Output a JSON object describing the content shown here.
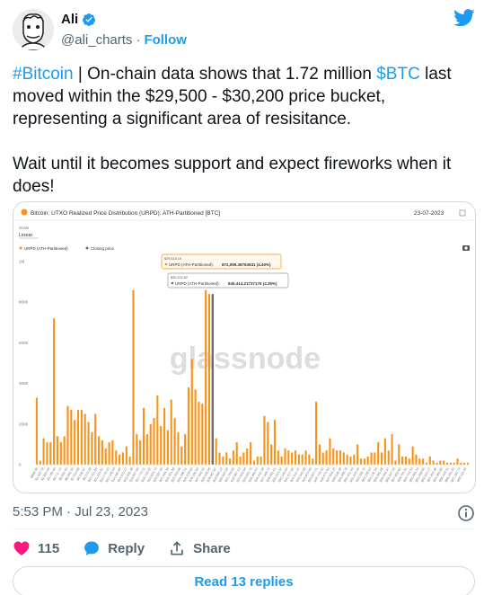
{
  "author": {
    "name": "Ali",
    "handle": "@ali_charts",
    "separator": "·",
    "follow_label": "Follow"
  },
  "tweet": {
    "hashtag": "#Bitcoin",
    "text_part1": " | On-chain data shows that 1.72 million ",
    "cashtag": "$BTC",
    "text_part2": "  last moved within the $29,500 - $30,200 price bucket, representing a significant area of resisitance.",
    "paragraph2": "Wait until it becomes support and expect fireworks when it does!"
  },
  "timestamp": "5:53 PM · Jul 23, 2023",
  "actions": {
    "likes": "115",
    "reply_label": "Reply",
    "share_label": "Share"
  },
  "read_replies_label": "Read 13 replies",
  "colors": {
    "accent": "#1d9bf0",
    "bar": "#f7931a",
    "like": "#f91880"
  },
  "icons": [
    "verified-badge-icon",
    "twitter-bird-icon",
    "info-icon",
    "heart-icon",
    "reply-icon",
    "share-icon",
    "camera-icon",
    "expand-icon"
  ],
  "chart_data": {
    "type": "bar",
    "title": "Bitcoin: UTXO Realized Price Distribution (URPD): ATH-Partitioned [BTC]",
    "date": "23-07-2023",
    "scale_label": "Scale",
    "scale_value": "Linear",
    "legend": [
      {
        "name": "URPD (ATH-Partitioned)",
        "color": "#f7931a"
      },
      {
        "name": "Closing price",
        "color": "#6e6e6e"
      }
    ],
    "watermark": "glassnode",
    "y_ticks": [
      "1M",
      "800K",
      "600K",
      "400K",
      "200K",
      "0"
    ],
    "ylim": [
      0,
      1000000
    ],
    "tooltip1": {
      "price": "$29,518.19",
      "series": "URPD (ATH-Partitioned):",
      "value": "872,059.38764941 (4.40%)"
    },
    "tooltip2": {
      "price": "$30,202.62",
      "series": "URPD (ATH-Partitioned):",
      "value": "845,414.21737176 (4.35%)"
    },
    "values": [
      330000,
      20000,
      130000,
      110000,
      110000,
      720000,
      140000,
      110000,
      140000,
      290000,
      270000,
      220000,
      270000,
      270000,
      250000,
      210000,
      160000,
      250000,
      140000,
      120000,
      80000,
      110000,
      120000,
      70000,
      50000,
      60000,
      90000,
      40000,
      860000,
      150000,
      120000,
      280000,
      150000,
      200000,
      230000,
      340000,
      190000,
      280000,
      170000,
      320000,
      230000,
      160000,
      90000,
      150000,
      380000,
      520000,
      370000,
      310000,
      300000,
      860000,
      840000,
      310000,
      130000,
      60000,
      40000,
      60000,
      30000,
      70000,
      110000,
      40000,
      60000,
      80000,
      110000,
      20000,
      40000,
      40000,
      240000,
      210000,
      100000,
      220000,
      70000,
      40000,
      80000,
      70000,
      60000,
      70000,
      50000,
      50000,
      70000,
      50000,
      30000,
      310000,
      100000,
      60000,
      70000,
      130000,
      80000,
      70000,
      70000,
      60000,
      50000,
      40000,
      50000,
      100000,
      30000,
      30000,
      40000,
      60000,
      60000,
      110000,
      60000,
      130000,
      70000,
      150000,
      20000,
      100000,
      40000,
      40000,
      30000,
      90000,
      50000,
      30000,
      30000,
      10000,
      40000,
      20000,
      10000,
      20000,
      20000,
      10000,
      10000,
      10000,
      30000,
      10000,
      10000,
      10000
    ],
    "x_tick_labels": [
      "$988.46",
      "$1,920.78",
      "$2,853.09",
      "$3,785.40",
      "$4,717.72",
      "$5,650.03",
      "$6,582.35",
      "$7,514.66",
      "$8,446.97",
      "$9,379.29",
      "$10,311.60",
      "$11,243.91",
      "$12,176.23",
      "$13,108.54",
      "$14,040.85",
      "$14,973.17",
      "$15,905.48",
      "$16,837.80",
      "$17,770.11",
      "$18,702.42",
      "$19,634.74",
      "$20,567.05",
      "$21,499.36",
      "$22,431.68",
      "$23,363.99",
      "$24,296.31",
      "$25,228.62",
      "$26,160.93",
      "$27,093.25",
      "$28,025.56",
      "$28,957.87",
      "$29,890.19",
      "$30,822.50",
      "$31,754.82",
      "$32,687.13",
      "$33,619.44",
      "$34,551.76",
      "$35,484.07",
      "$36,416.38",
      "$37,348.70",
      "$38,281.01",
      "$39,213.32",
      "$40,145.64",
      "$41,077.95",
      "$42,010.27",
      "$42,942.58",
      "$43,874.89",
      "$44,807.21",
      "$45,739.52",
      "$46,671.83",
      "$47,604.15",
      "$48,536.46",
      "$49,468.78",
      "$50,401.09",
      "$51,333.40",
      "$52,265.72",
      "$53,198.03",
      "$54,130.34",
      "$55,062.66",
      "$55,994.97",
      "$56,927.29",
      "$57,859.60",
      "$58,791.91",
      "$59,724.23",
      "$60,656.54",
      "$61,588.85",
      "$62,521.17",
      "$63,453.48",
      "$64,385.80",
      "$65,318.11",
      "$66,250.42",
      "$67,182.74",
      "$68,115.05"
    ],
    "highlight_index": 50,
    "closing_price_index": 51,
    "grid": false
  }
}
